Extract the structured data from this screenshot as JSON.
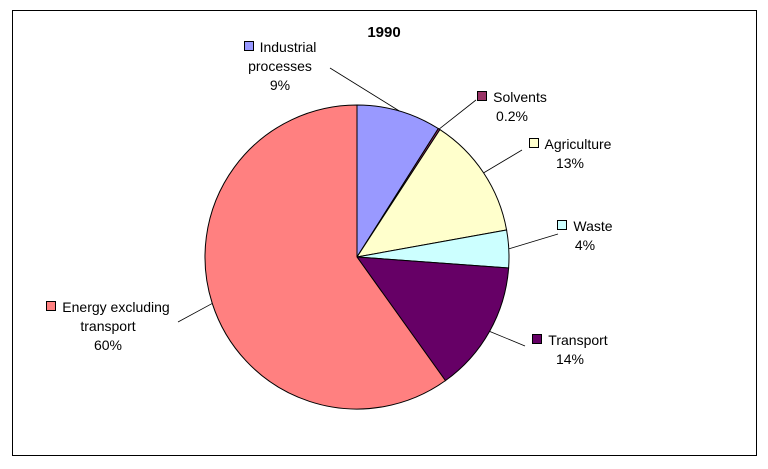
{
  "chart_data": {
    "type": "pie",
    "title": "1990",
    "categories": [
      "Industrial processes",
      "Solvents",
      "Agriculture",
      "Waste",
      "Transport",
      "Energy excluding transport"
    ],
    "values": [
      9,
      0.2,
      13,
      4,
      14,
      60
    ],
    "value_labels": [
      "9%",
      "0.2%",
      "13%",
      "4%",
      "14%",
      "60%"
    ],
    "colors": [
      "#9999ff",
      "#993366",
      "#ffffcc",
      "#ccffff",
      "#660066",
      "#ff8080"
    ]
  }
}
